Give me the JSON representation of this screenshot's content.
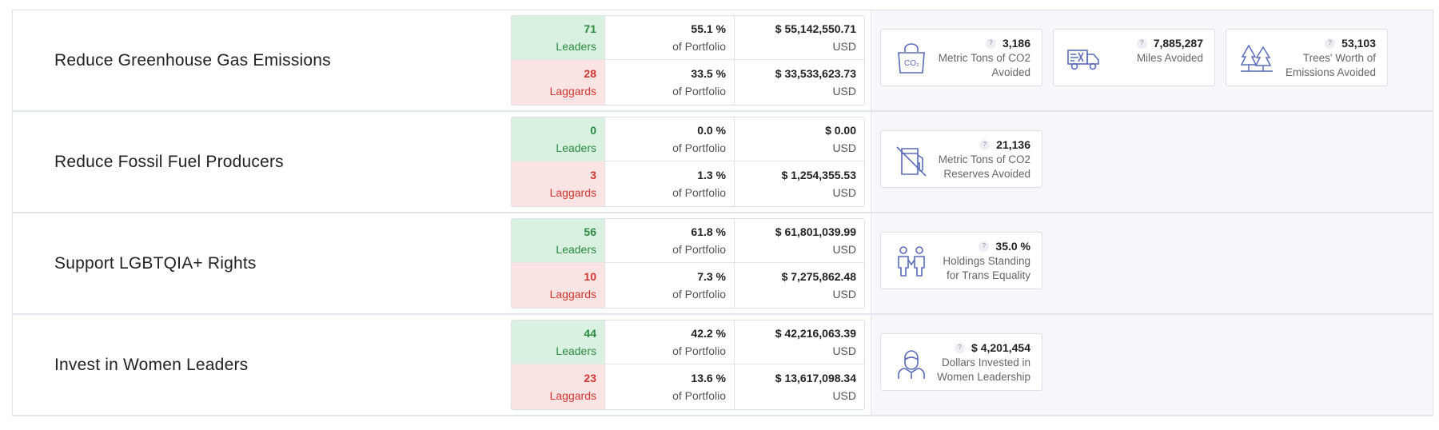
{
  "units": {
    "leaders": "Leaders",
    "laggards": "Laggards",
    "of_portfolio": "of Portfolio",
    "usd": "USD",
    "help": "?"
  },
  "rows": [
    {
      "goal": "Reduce Greenhouse Gas Emissions",
      "leaders": {
        "count": "71",
        "pct": "55.1 %",
        "amount": "$ 55,142,550.71"
      },
      "laggards": {
        "count": "28",
        "pct": "33.5 %",
        "amount": "$ 33,533,623.73"
      },
      "impacts": [
        {
          "icon": "co2-bag-icon",
          "value": "3,186",
          "label1": "Metric Tons of CO2",
          "label2": "Avoided"
        },
        {
          "icon": "truck-icon",
          "value": "7,885,287",
          "label1": "Miles Avoided",
          "label2": ""
        },
        {
          "icon": "trees-icon",
          "value": "53,103",
          "label1": "Trees' Worth of",
          "label2": "Emissions Avoided"
        }
      ]
    },
    {
      "goal": "Reduce Fossil Fuel Producers",
      "leaders": {
        "count": "0",
        "pct": "0.0 %",
        "amount": "$ 0.00"
      },
      "laggards": {
        "count": "3",
        "pct": "1.3 %",
        "amount": "$ 1,254,355.53"
      },
      "impacts": [
        {
          "icon": "no-fuel-icon",
          "value": "21,136",
          "label1": "Metric Tons of CO2",
          "label2": "Reserves Avoided"
        }
      ]
    },
    {
      "goal": "Support LGBTQIA+ Rights",
      "leaders": {
        "count": "56",
        "pct": "61.8 %",
        "amount": "$ 61,801,039.99"
      },
      "laggards": {
        "count": "10",
        "pct": "7.3 %",
        "amount": "$ 7,275,862.48"
      },
      "impacts": [
        {
          "icon": "people-icon",
          "value": "35.0 %",
          "label1": "Holdings Standing",
          "label2": "for Trans Equality"
        }
      ]
    },
    {
      "goal": "Invest in Women Leaders",
      "leaders": {
        "count": "44",
        "pct": "42.2 %",
        "amount": "$ 42,216,063.39"
      },
      "laggards": {
        "count": "23",
        "pct": "13.6 %",
        "amount": "$ 13,617,098.34"
      },
      "impacts": [
        {
          "icon": "woman-icon",
          "value": "$ 4,201,454",
          "label1": "Dollars Invested in",
          "label2": "Women Leadership"
        }
      ]
    }
  ],
  "colors": {
    "leader_bg": "#d9f1e0",
    "leader_text": "#2a8a3e",
    "laggard_bg": "#fbe4e3",
    "laggard_text": "#d0352f",
    "icon_stroke": "#5a6bb8"
  }
}
